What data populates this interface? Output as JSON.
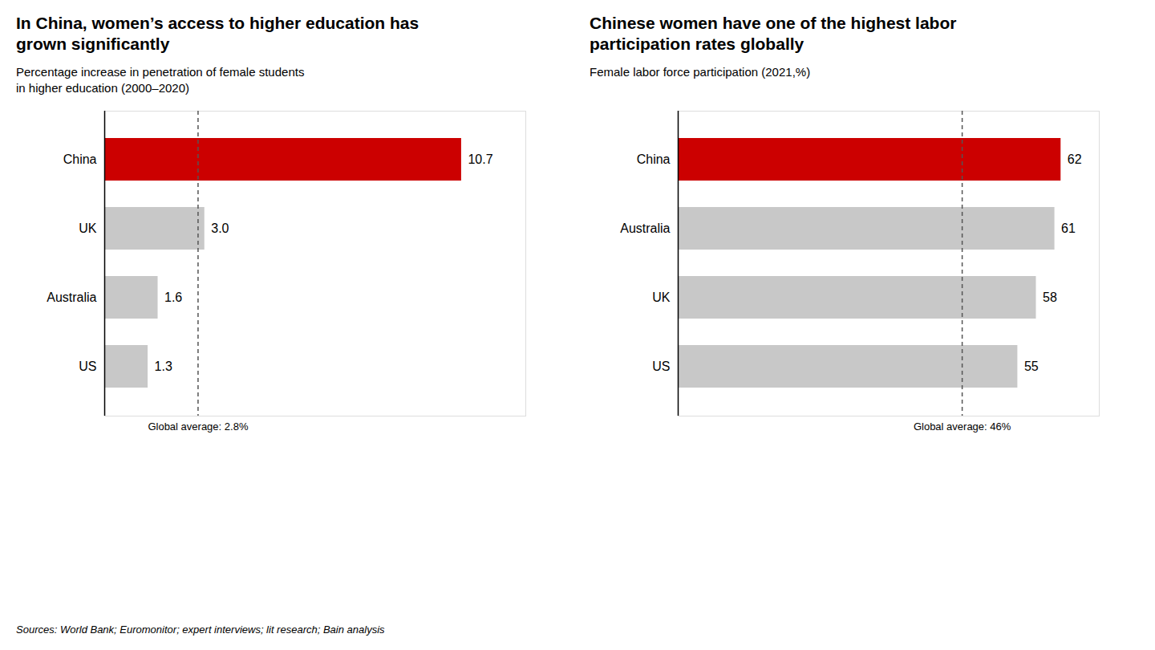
{
  "chart_data": [
    {
      "type": "bar",
      "orientation": "horizontal",
      "title": "In China, women’s access to higher education has\ngrown significantly",
      "subtitle": "Percentage increase in penetration of female students\nin higher education (2000–2020)",
      "categories": [
        "China",
        "UK",
        "Australia",
        "US"
      ],
      "values": [
        10.7,
        3.0,
        1.6,
        1.3
      ],
      "value_labels": [
        "10.7",
        "3.0",
        "1.6",
        "1.3"
      ],
      "colors": [
        "#cc0000",
        "#c8c8c8",
        "#c8c8c8",
        "#c8c8c8"
      ],
      "xlim": [
        0,
        12.626
      ],
      "data_labels": true,
      "tick_labels": "y",
      "grid": false,
      "annotations": [
        {
          "text": "Global average: 2.8%",
          "x": 2.8,
          "line_style": "dashed"
        }
      ]
    },
    {
      "type": "bar",
      "orientation": "horizontal",
      "title": "Chinese women have one of the highest labor\nparticipation rates globally",
      "subtitle": "Female labor force participation (2021,%)",
      "categories": [
        "China",
        "Australia",
        "UK",
        "US"
      ],
      "values": [
        62,
        61,
        58,
        55
      ],
      "colors": [
        "#cc0000",
        "#c8c8c8",
        "#c8c8c8",
        "#c8c8c8"
      ],
      "xlim": [
        0,
        68.2
      ],
      "data_labels": true,
      "tick_labels": "y",
      "grid": false,
      "annotations": [
        {
          "text": "Global average: 46%",
          "x": 46,
          "line_style": "dashed"
        }
      ]
    }
  ],
  "source": "Sources: World Bank; Euromonitor; expert interviews; lit research; Bain analysis"
}
